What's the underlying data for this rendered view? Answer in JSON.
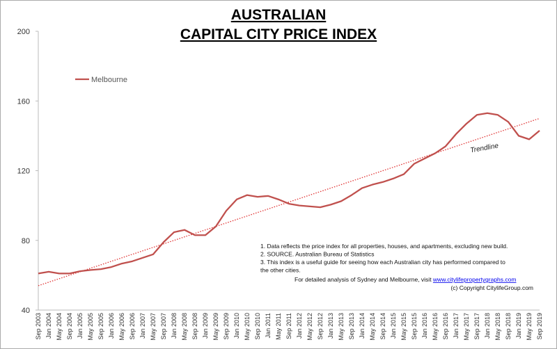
{
  "chart_data": {
    "type": "line",
    "title": [
      "AUSTRALIAN",
      "CAPITAL CITY PRICE INDEX"
    ],
    "categories": [
      "Sep 2003",
      "Jan 2004",
      "May 2004",
      "Sep 2004",
      "Jan 2005",
      "May 2005",
      "Sep 2005",
      "Jan 2006",
      "May 2006",
      "Sep 2006",
      "Jan 2007",
      "May 2007",
      "Sep 2007",
      "Jan 2008",
      "May 2008",
      "Sep 2008",
      "Jan 2009",
      "May 2009",
      "Sep 2009",
      "Jan 2010",
      "May 2010",
      "Sep 2010",
      "Jan 2011",
      "May 2011",
      "Sep 2011",
      "Jan 2012",
      "May 2012",
      "Sep 2012",
      "Jan 2013",
      "May 2013",
      "Sep 2013",
      "Jan 2014",
      "May 2014",
      "Sep 2014",
      "Jan 2015",
      "May 2015",
      "Sep 2015",
      "Jan 2016",
      "May 2016",
      "Sep 2016",
      "Jan 2017",
      "May 2017",
      "Sep 2017",
      "Jan 2018",
      "May 2018",
      "Sep 2018",
      "Jan 2019",
      "May 2019",
      "Sep 2019"
    ],
    "series": [
      {
        "name": "Melbourne",
        "color": "#c0504d",
        "values": [
          61,
          62,
          61,
          61,
          62.3,
          63,
          63.5,
          64.7,
          66.7,
          68,
          70,
          72,
          79,
          84.7,
          86,
          83,
          83,
          88,
          97,
          103.5,
          106,
          105,
          105.5,
          103.5,
          101,
          100,
          99.5,
          99,
          100.5,
          102.5,
          106,
          110,
          112,
          113.5,
          115.5,
          118,
          124,
          127,
          130,
          134,
          141,
          147,
          152,
          153,
          152,
          148,
          140,
          138,
          143
        ]
      }
    ],
    "trendline": {
      "label": "Trendline",
      "color": "#e03030",
      "start": 54,
      "end": 150
    },
    "ylim": [
      40,
      200
    ],
    "yticks": [
      40,
      80,
      120,
      160,
      200
    ],
    "legend": "top-left",
    "notes": [
      "1.  Data reflects the price index for all properties, houses, and apartments, excluding new build.",
      "2.  SOURCE.    Australian Bureau of Statistics",
      "3.  This index is a useful guide for seeing how each Australian city has performed compared to",
      "the other cities."
    ],
    "visit_text": "For detailed analysis of Sydney and Melbourne, visit ",
    "link": "www.citylifepropertygraphs.com",
    "copyright": "(c) Copyright CitylifeGroup.com"
  }
}
